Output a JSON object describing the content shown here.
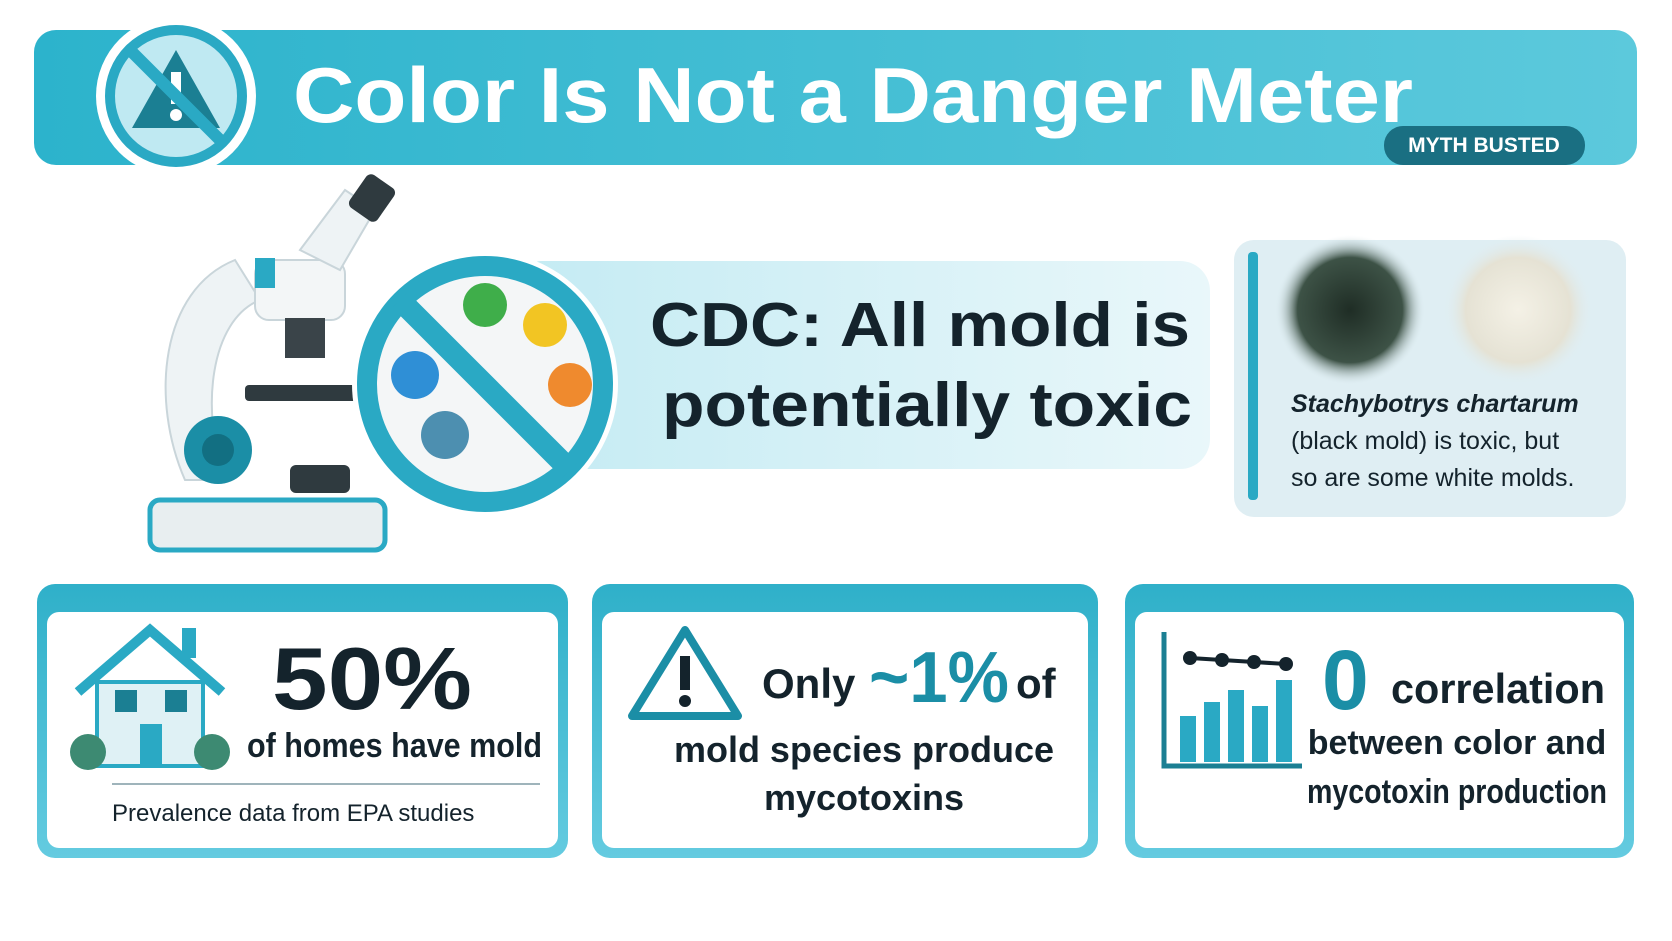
{
  "header": {
    "title": "Color Is Not a Danger Meter",
    "badge": "MYTH BUSTED"
  },
  "callout": {
    "lines": [
      "CDC: All mold is",
      "potentially toxic"
    ]
  },
  "mold_card": {
    "species": "Stachybotrys chartarum",
    "lines": [
      "(black mold) is toxic, but",
      "so are some white molds."
    ]
  },
  "stats": [
    {
      "value": "50%",
      "text": "of homes have mold",
      "note": "Prevalence data from EPA studies"
    },
    {
      "prefix": "Only",
      "value": "~1%",
      "suffix": "of",
      "lines": [
        "mold species produce",
        "mycotoxins"
      ]
    },
    {
      "value": "0",
      "suffix": "correlation",
      "lines": [
        "between color and",
        "mycotoxin production"
      ]
    }
  ]
}
